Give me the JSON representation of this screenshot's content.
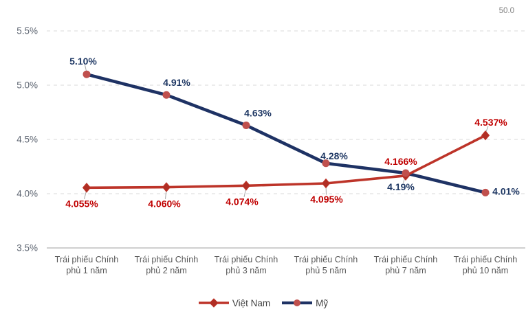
{
  "chart_data": {
    "type": "line",
    "title": "",
    "xlabel": "",
    "ylabel": "",
    "secondary_axis_label": "50.0",
    "ylim": [
      3.5,
      5.5
    ],
    "grid": "horizontal-dashed",
    "colors": {
      "grid": "#d9d9d9",
      "axis": "#bfbfbf",
      "leader": "#a6a6a6"
    },
    "y_ticks": [
      {
        "label": "5.5%",
        "value": 5.5
      },
      {
        "label": "5.0%",
        "value": 5.0
      },
      {
        "label": "4.5%",
        "value": 4.5
      },
      {
        "label": "4.0%",
        "value": 4.0
      },
      {
        "label": "3.5%",
        "value": 3.5
      }
    ],
    "categories": [
      [
        "Trái phiếu Chính",
        "phủ 1 năm"
      ],
      [
        "Trái phiếu Chính",
        "phủ 2 năm"
      ],
      [
        "Trái phiếu Chính",
        "phủ 3 năm"
      ],
      [
        "Trái phiếu Chính",
        "phủ 5 năm"
      ],
      [
        "Trái phiếu Chính",
        "phủ 7 năm"
      ],
      [
        "Trái phiếu Chính",
        "phủ 10 năm"
      ]
    ],
    "series": [
      {
        "name": "Việt Nam",
        "color": "#bd3429",
        "marker": "diamond",
        "marker_color": "#b02e24",
        "label_color": "#c00000",
        "line_width": 3.6,
        "values": [
          4.055,
          4.06,
          4.074,
          4.095,
          4.166,
          4.537
        ],
        "labels": [
          "4.055%",
          "4.060%",
          "4.074%",
          "4.095%",
          "4.166%",
          "4.537%"
        ],
        "label_offsets": [
          [
            -7,
            23
          ],
          [
            -3,
            24
          ],
          [
            -6,
            23
          ],
          [
            1,
            23
          ],
          [
            -7,
            -21
          ],
          [
            8,
            -19
          ]
        ],
        "label_leaders": [
          true,
          true,
          true,
          true,
          false,
          true
        ]
      },
      {
        "name": "Mỹ",
        "color": "#1e3264",
        "marker": "circle",
        "marker_color": "#c0504d",
        "label_color": "#1f3864",
        "line_width": 4.6,
        "values": [
          5.1,
          4.91,
          4.63,
          4.28,
          4.19,
          4.01
        ],
        "labels": [
          "5.10%",
          "4.91%",
          "4.63%",
          "4.28%",
          "4.19%",
          "4.01%"
        ],
        "label_offsets": [
          [
            -5,
            -19
          ],
          [
            15,
            -18
          ],
          [
            17,
            -18
          ],
          [
            12,
            -11
          ],
          [
            -7,
            20
          ],
          [
            30,
            -2
          ]
        ],
        "label_leaders": [
          true,
          false,
          false,
          false,
          true,
          false
        ]
      }
    ],
    "legend": {
      "position": "bottom"
    }
  }
}
